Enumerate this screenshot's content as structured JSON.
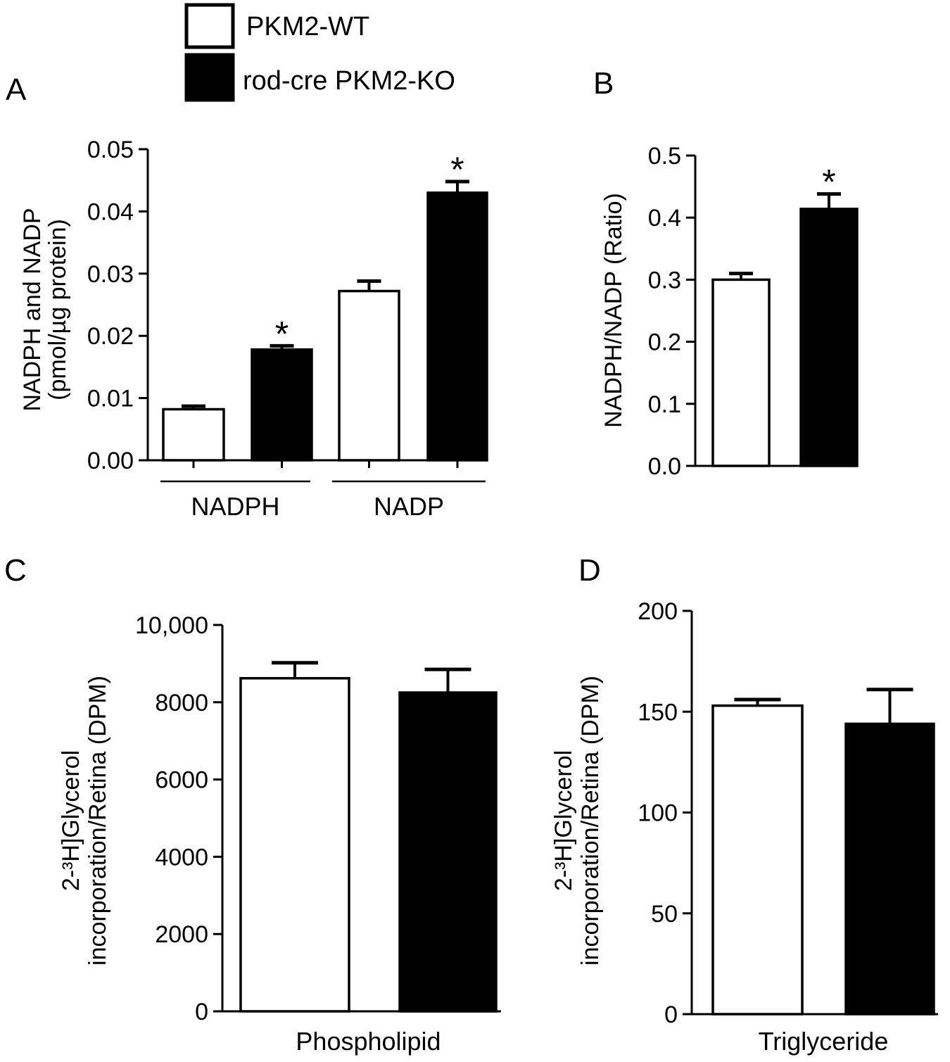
{
  "legend": {
    "wt_label": "PKM2-WT",
    "ko_label": "rod-cre PKM2-KO",
    "wt_color": "#ffffff",
    "ko_color": "#000000"
  },
  "chart_data": [
    {
      "panel": "A",
      "type": "bar",
      "ylabel_line1": "NADPH and NADP",
      "ylabel_line2": "(pmol/µg protein)",
      "ylim": [
        0,
        0.05
      ],
      "yticks": [
        "0.00",
        "0.01",
        "0.02",
        "0.03",
        "0.04",
        "0.05"
      ],
      "categories": [
        "NADPH",
        "NADP"
      ],
      "series": [
        {
          "name": "PKM2-WT",
          "values": [
            0.0082,
            0.0272
          ],
          "errors": [
            0.0005,
            0.0016
          ],
          "significant": [
            false,
            false
          ]
        },
        {
          "name": "rod-cre PKM2-KO",
          "values": [
            0.0178,
            0.043
          ],
          "errors": [
            0.0006,
            0.0018
          ],
          "significant": [
            true,
            true
          ]
        }
      ],
      "significance_marker": "*"
    },
    {
      "panel": "B",
      "type": "bar",
      "ylabel": "NADPH/NADP (Ratio)",
      "ylim": [
        0,
        0.5
      ],
      "yticks": [
        "0.0",
        "0.1",
        "0.2",
        "0.3",
        "0.4",
        "0.5"
      ],
      "categories": [
        ""
      ],
      "series": [
        {
          "name": "PKM2-WT",
          "values": [
            0.3
          ],
          "errors": [
            0.01
          ],
          "significant": [
            false
          ]
        },
        {
          "name": "rod-cre PKM2-KO",
          "values": [
            0.414
          ],
          "errors": [
            0.024
          ],
          "significant": [
            true
          ]
        }
      ],
      "significance_marker": "*"
    },
    {
      "panel": "C",
      "type": "bar",
      "ylabel_line1": "2-³H]Glycerol",
      "ylabel_line2": "incorporation/Retina (DPM)",
      "ylim": [
        0,
        10000
      ],
      "yticks": [
        "0",
        "2000",
        "4000",
        "6000",
        "8000",
        "10,000"
      ],
      "categories": [
        "Phospholipid"
      ],
      "series": [
        {
          "name": "PKM2-WT",
          "values": [
            8620
          ],
          "errors": [
            400
          ],
          "significant": [
            false
          ]
        },
        {
          "name": "rod-cre PKM2-KO",
          "values": [
            8250
          ],
          "errors": [
            600
          ],
          "significant": [
            false
          ]
        }
      ]
    },
    {
      "panel": "D",
      "type": "bar",
      "ylabel_line1": "2-³H]Glycerol",
      "ylabel_line2": "incorporation/Retina (DPM)",
      "ylim": [
        0,
        200
      ],
      "yticks": [
        "0",
        "50",
        "100",
        "150",
        "200"
      ],
      "categories": [
        "Triglyceride"
      ],
      "series": [
        {
          "name": "PKM2-WT",
          "values": [
            153
          ],
          "errors": [
            3
          ],
          "significant": [
            false
          ]
        },
        {
          "name": "rod-cre PKM2-KO",
          "values": [
            144
          ],
          "errors": [
            17
          ],
          "significant": [
            false
          ]
        }
      ]
    }
  ]
}
